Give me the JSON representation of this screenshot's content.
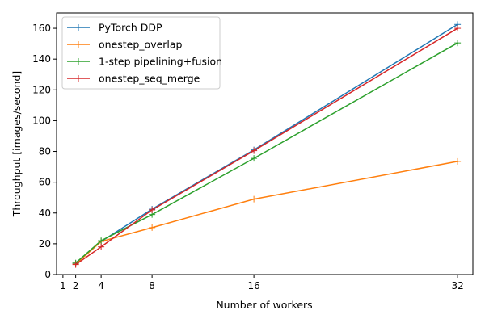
{
  "chart_data": {
    "type": "line",
    "title": "",
    "xlabel": "Number of workers",
    "ylabel": "Throughput [images/second]",
    "xlim": [
      0.5,
      33.2
    ],
    "ylim": [
      0,
      170
    ],
    "xticks": [
      1,
      2,
      4,
      8,
      16,
      32
    ],
    "yticks": [
      0,
      20,
      40,
      60,
      80,
      100,
      120,
      140,
      160
    ],
    "grid": false,
    "legend_position": "top-left",
    "x": [
      2,
      4,
      8,
      16,
      32
    ],
    "series": [
      {
        "name": "PyTorch DDP",
        "color": "#1f77b4",
        "marker": "plus",
        "values": [
          7.2,
          21.5,
          42.5,
          81,
          162.5
        ]
      },
      {
        "name": "onestep_overlap",
        "color": "#ff7f0e",
        "marker": "plus",
        "values": [
          6.8,
          21.5,
          30.5,
          49,
          73.5
        ]
      },
      {
        "name": "1-step pipelining+fusion",
        "color": "#2ca02c",
        "marker": "plus",
        "values": [
          7.5,
          22,
          39,
          75.5,
          150.5
        ]
      },
      {
        "name": "onestep_seq_merge",
        "color": "#d62728",
        "marker": "plus",
        "values": [
          6.5,
          18,
          42,
          80.5,
          160
        ]
      }
    ]
  }
}
